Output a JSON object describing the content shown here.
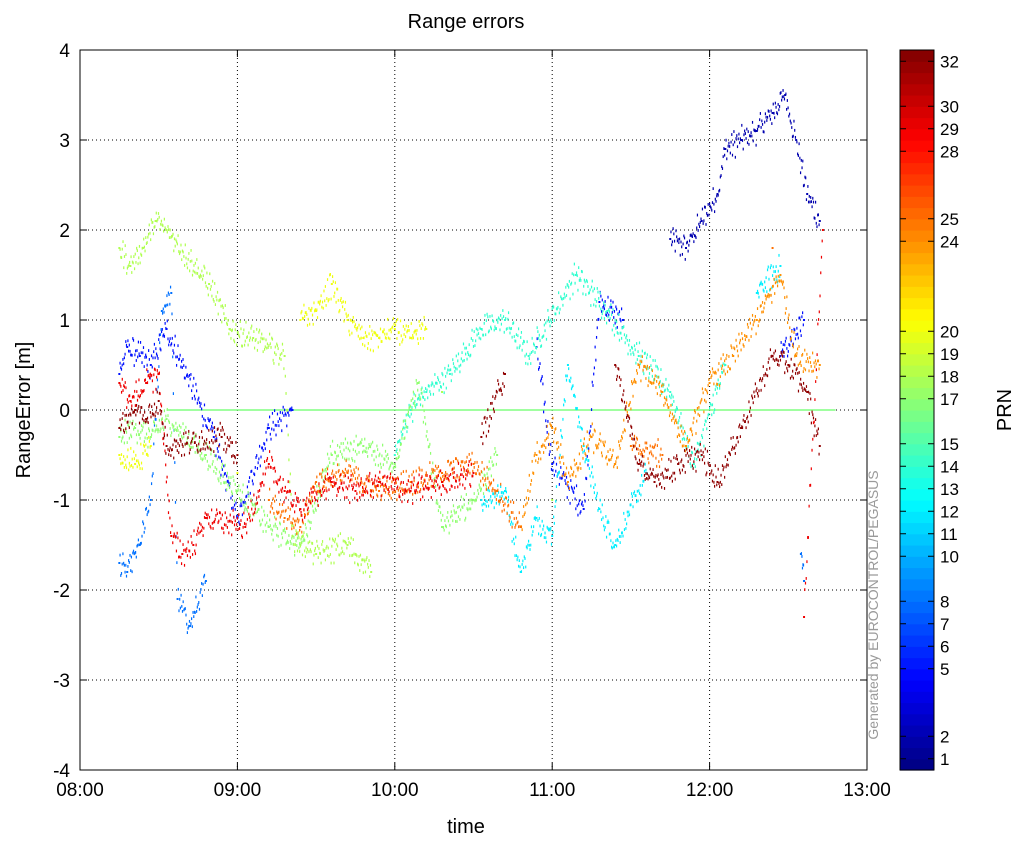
{
  "chart_data": {
    "type": "scatter",
    "title": "Range errors",
    "xlabel": "time",
    "ylabel": "RangeError [m]",
    "colorbar_label": "PRN",
    "watermark": "Generated by EUROCONTROL/PEGASUS",
    "x_ticks": [
      "08:00",
      "09:00",
      "10:00",
      "11:00",
      "12:00",
      "13:00"
    ],
    "x_tick_hours": [
      8,
      9,
      10,
      11,
      12,
      13
    ],
    "xlim": [
      8,
      13
    ],
    "y_ticks": [
      -4,
      -3,
      -2,
      -1,
      0,
      1,
      2,
      3,
      4
    ],
    "ylim": [
      -4,
      4
    ],
    "grid": true,
    "colorbar_ticks": [
      1,
      2,
      5,
      6,
      7,
      8,
      10,
      11,
      12,
      13,
      14,
      15,
      17,
      18,
      19,
      20,
      24,
      25,
      28,
      29,
      30,
      32
    ],
    "colorbar_range": [
      0.5,
      32.5
    ],
    "colormap": "jet",
    "series": [
      {
        "prn": 2,
        "points": [
          [
            11.75,
            1.9
          ],
          [
            11.85,
            1.8
          ],
          [
            11.95,
            2.1
          ],
          [
            12.05,
            2.4
          ],
          [
            12.1,
            2.9
          ],
          [
            12.2,
            3.0
          ],
          [
            12.3,
            3.1
          ],
          [
            12.4,
            3.3
          ],
          [
            12.48,
            3.5
          ],
          [
            12.55,
            3.0
          ],
          [
            12.62,
            2.4
          ],
          [
            12.7,
            2.1
          ]
        ]
      },
      {
        "prn": 5,
        "points": [
          [
            8.25,
            0.4
          ],
          [
            8.3,
            0.7
          ],
          [
            8.38,
            0.6
          ],
          [
            8.45,
            0.5
          ],
          [
            8.55,
            0.9
          ],
          [
            8.85,
            -0.3
          ],
          [
            9.0,
            -1.2
          ],
          [
            9.2,
            -0.2
          ],
          [
            9.35,
            0.0
          ],
          [
            10.9,
            0.7
          ],
          [
            11.0,
            -0.6
          ],
          [
            11.2,
            -1.1
          ],
          [
            11.3,
            1.2
          ],
          [
            11.45,
            1.0
          ],
          [
            12.45,
            0.6
          ],
          [
            12.6,
            1.0
          ]
        ]
      },
      {
        "prn": 8,
        "points": [
          [
            8.25,
            -1.7
          ],
          [
            8.3,
            -1.8
          ],
          [
            8.38,
            -1.5
          ],
          [
            8.45,
            -1.0
          ],
          [
            8.52,
            1.1
          ],
          [
            8.58,
            1.3
          ],
          [
            8.62,
            -2.1
          ],
          [
            8.7,
            -2.4
          ],
          [
            8.8,
            -1.9
          ],
          [
            12.58,
            -1.6
          ],
          [
            12.6,
            -1.9
          ]
        ]
      },
      {
        "prn": 12,
        "points": [
          [
            10.55,
            -1.0
          ],
          [
            10.7,
            -0.9
          ],
          [
            10.8,
            -1.8
          ],
          [
            10.9,
            -1.2
          ],
          [
            11.0,
            -1.4
          ],
          [
            11.1,
            0.5
          ],
          [
            11.2,
            -0.4
          ],
          [
            11.3,
            -1.1
          ],
          [
            11.4,
            -1.5
          ],
          [
            11.6,
            -0.7
          ],
          [
            12.3,
            1.3
          ],
          [
            12.45,
            1.6
          ]
        ]
      },
      {
        "prn": 14,
        "points": [
          [
            10.0,
            -0.5
          ],
          [
            10.1,
            0.0
          ],
          [
            10.2,
            0.2
          ],
          [
            10.35,
            0.4
          ],
          [
            10.55,
            0.9
          ],
          [
            10.7,
            1.0
          ],
          [
            10.85,
            0.6
          ],
          [
            11.15,
            1.5
          ],
          [
            11.35,
            1.1
          ],
          [
            11.55,
            0.6
          ],
          [
            11.75,
            0.2
          ],
          [
            11.9,
            -0.6
          ],
          [
            12.1,
            0.5
          ]
        ]
      },
      {
        "prn": 17,
        "points": [
          [
            8.25,
            -0.3
          ],
          [
            8.35,
            -0.2
          ],
          [
            8.45,
            -0.3
          ],
          [
            8.55,
            -0.1
          ],
          [
            8.8,
            -0.5
          ],
          [
            9.0,
            -0.9
          ],
          [
            9.2,
            -1.3
          ],
          [
            9.4,
            -1.5
          ],
          [
            9.6,
            -0.5
          ],
          [
            9.8,
            -0.4
          ],
          [
            10.0,
            -0.6
          ],
          [
            10.15,
            0.3
          ],
          [
            10.3,
            -1.3
          ],
          [
            10.5,
            -1.0
          ],
          [
            10.65,
            -0.5
          ]
        ]
      },
      {
        "prn": 18,
        "points": [
          [
            8.25,
            1.8
          ],
          [
            8.32,
            1.6
          ],
          [
            8.4,
            1.8
          ],
          [
            8.48,
            2.1
          ],
          [
            8.55,
            2.0
          ],
          [
            8.82,
            1.4
          ],
          [
            8.95,
            0.9
          ],
          [
            9.1,
            0.8
          ],
          [
            9.3,
            0.6
          ],
          [
            9.35,
            -1.4
          ],
          [
            9.5,
            -1.6
          ],
          [
            9.7,
            -1.5
          ],
          [
            9.85,
            -1.8
          ],
          [
            10.3,
            0.2
          ],
          [
            11.0,
            -1.0
          ]
        ]
      },
      {
        "prn": 20,
        "points": [
          [
            9.4,
            1.0
          ],
          [
            9.5,
            1.1
          ],
          [
            9.6,
            1.4
          ],
          [
            9.7,
            1.0
          ],
          [
            9.8,
            0.8
          ],
          [
            9.9,
            0.8
          ],
          [
            10.0,
            0.9
          ],
          [
            10.1,
            0.8
          ],
          [
            10.2,
            0.9
          ],
          [
            8.25,
            -0.5
          ],
          [
            8.35,
            -0.6
          ],
          [
            8.45,
            -0.4
          ],
          [
            9.0,
            -0.7
          ]
        ]
      },
      {
        "prn": 24,
        "points": [
          [
            10.8,
            -1.3
          ],
          [
            10.9,
            -0.5
          ],
          [
            11.0,
            -0.2
          ],
          [
            11.1,
            -0.8
          ],
          [
            11.25,
            -0.3
          ],
          [
            11.4,
            -0.6
          ],
          [
            11.55,
            0.5
          ],
          [
            11.7,
            0.2
          ],
          [
            11.85,
            -0.4
          ],
          [
            12.0,
            0.3
          ],
          [
            12.15,
            0.6
          ],
          [
            12.3,
            1.0
          ],
          [
            12.45,
            1.5
          ],
          [
            12.55,
            0.6
          ],
          [
            12.7,
            0.5
          ]
        ]
      },
      {
        "prn": 25,
        "points": [
          [
            9.2,
            -1.0
          ],
          [
            9.3,
            -1.2
          ],
          [
            9.4,
            -1.3
          ],
          [
            9.5,
            -0.8
          ],
          [
            9.7,
            -0.7
          ],
          [
            9.9,
            -0.9
          ],
          [
            10.1,
            -0.8
          ],
          [
            10.3,
            -0.7
          ],
          [
            10.5,
            -0.6
          ],
          [
            10.65,
            -0.9
          ],
          [
            10.8,
            -1.3
          ],
          [
            11.5,
            -0.4
          ],
          [
            11.7,
            -0.5
          ],
          [
            12.4,
            1.8
          ]
        ]
      },
      {
        "prn": 29,
        "points": [
          [
            8.25,
            0.3
          ],
          [
            8.32,
            0.1
          ],
          [
            8.42,
            0.3
          ],
          [
            8.5,
            0.4
          ],
          [
            8.58,
            -1.4
          ],
          [
            8.65,
            -1.6
          ],
          [
            8.72,
            -1.5
          ],
          [
            8.8,
            -1.2
          ],
          [
            9.05,
            -1.3
          ],
          [
            9.2,
            -0.6
          ],
          [
            9.3,
            -0.9
          ],
          [
            9.4,
            -1.1
          ],
          [
            9.6,
            -0.8
          ],
          [
            9.75,
            -0.9
          ],
          [
            9.9,
            -0.8
          ],
          [
            10.1,
            -0.9
          ],
          [
            10.3,
            -0.8
          ],
          [
            10.5,
            -0.7
          ],
          [
            12.6,
            -2.3
          ],
          [
            12.72,
            2.0
          ]
        ]
      },
      {
        "prn": 32,
        "points": [
          [
            8.25,
            -0.2
          ],
          [
            8.35,
            0.0
          ],
          [
            8.42,
            -0.1
          ],
          [
            8.5,
            0.1
          ],
          [
            8.55,
            -0.4
          ],
          [
            8.9,
            -0.3
          ],
          [
            9.0,
            -0.5
          ],
          [
            10.55,
            -0.3
          ],
          [
            10.7,
            0.4
          ],
          [
            11.4,
            0.5
          ],
          [
            11.55,
            -0.6
          ],
          [
            11.65,
            -0.8
          ],
          [
            11.8,
            -0.6
          ],
          [
            11.95,
            -0.5
          ],
          [
            12.05,
            -0.8
          ],
          [
            12.2,
            -0.2
          ],
          [
            12.4,
            0.6
          ],
          [
            12.5,
            0.5
          ],
          [
            12.62,
            0.2
          ],
          [
            12.7,
            -0.4
          ]
        ]
      }
    ],
    "zero_reference": {
      "value": 0,
      "x_range": [
        8.55,
        12.8
      ],
      "color": "#80ff80"
    }
  }
}
